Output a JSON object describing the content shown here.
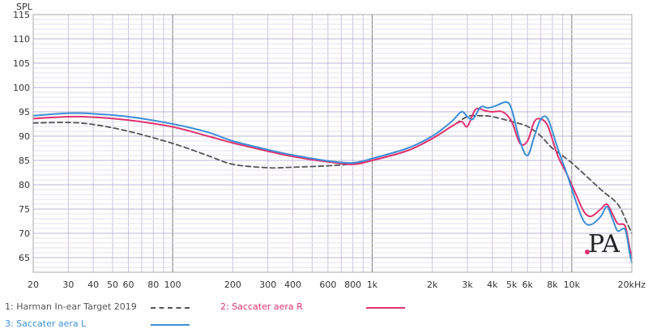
{
  "chart_data": {
    "type": "line",
    "ylabel": "SPL",
    "xscale": "log",
    "xlim": [
      20,
      20000
    ],
    "ylim": [
      62,
      115
    ],
    "yticks": [
      65,
      70,
      75,
      80,
      85,
      90,
      95,
      100,
      105,
      110,
      115
    ],
    "xticks": [
      {
        "v": 20,
        "label": "20"
      },
      {
        "v": 30,
        "label": "30"
      },
      {
        "v": 40,
        "label": "40"
      },
      {
        "v": 50,
        "label": "50"
      },
      {
        "v": 60,
        "label": "60"
      },
      {
        "v": 80,
        "label": "80"
      },
      {
        "v": 100,
        "label": "100"
      },
      {
        "v": 200,
        "label": "200"
      },
      {
        "v": 300,
        "label": "300"
      },
      {
        "v": 400,
        "label": "400"
      },
      {
        "v": 600,
        "label": "600"
      },
      {
        "v": 800,
        "label": "800"
      },
      {
        "v": 1000,
        "label": "1k"
      },
      {
        "v": 2000,
        "label": "2k"
      },
      {
        "v": 3000,
        "label": "3k"
      },
      {
        "v": 4000,
        "label": "4k"
      },
      {
        "v": 5000,
        "label": "5k"
      },
      {
        "v": 6000,
        "label": "6k"
      },
      {
        "v": 8000,
        "label": "8k"
      },
      {
        "v": 10000,
        "label": "10k"
      },
      {
        "v": 20000,
        "label": "20kHz"
      }
    ],
    "grid": true,
    "legend_position": "bottom",
    "series": [
      {
        "name": "1: Harman In-ear Target 2019",
        "color": "#555555",
        "dash": true,
        "points": [
          [
            20,
            92.7
          ],
          [
            30,
            92.8
          ],
          [
            40,
            92.4
          ],
          [
            60,
            91.0
          ],
          [
            100,
            88.5
          ],
          [
            150,
            86.0
          ],
          [
            200,
            84.2
          ],
          [
            300,
            83.5
          ],
          [
            400,
            83.6
          ],
          [
            600,
            83.9
          ],
          [
            800,
            84.3
          ],
          [
            1000,
            85.0
          ],
          [
            1500,
            87.0
          ],
          [
            2000,
            89.5
          ],
          [
            2500,
            92.0
          ],
          [
            3000,
            94.0
          ],
          [
            3500,
            94.2
          ],
          [
            4000,
            94.0
          ],
          [
            5000,
            93.0
          ],
          [
            6000,
            92.0
          ],
          [
            7000,
            90.0
          ],
          [
            8000,
            87.5
          ],
          [
            10000,
            84.5
          ],
          [
            14000,
            79.0
          ],
          [
            17000,
            76.0
          ],
          [
            19000,
            72.0
          ],
          [
            20000,
            70.0
          ]
        ]
      },
      {
        "name": "2: Saccater aera R",
        "color": "#e0336f",
        "dash": false,
        "points": [
          [
            20,
            93.6
          ],
          [
            30,
            94.0
          ],
          [
            40,
            93.9
          ],
          [
            60,
            93.3
          ],
          [
            100,
            91.9
          ],
          [
            150,
            90.0
          ],
          [
            200,
            88.6
          ],
          [
            300,
            86.9
          ],
          [
            400,
            85.8
          ],
          [
            600,
            84.7
          ],
          [
            800,
            84.2
          ],
          [
            1000,
            85.0
          ],
          [
            1500,
            87.0
          ],
          [
            2000,
            89.5
          ],
          [
            2500,
            92.0
          ],
          [
            2800,
            93.0
          ],
          [
            3000,
            92.0
          ],
          [
            3300,
            95.5
          ],
          [
            3700,
            95.2
          ],
          [
            4000,
            95.0
          ],
          [
            4500,
            95.0
          ],
          [
            5000,
            93.0
          ],
          [
            5500,
            88.5
          ],
          [
            6000,
            89.0
          ],
          [
            6500,
            93.0
          ],
          [
            7000,
            93.5
          ],
          [
            7600,
            92.0
          ],
          [
            8500,
            86.0
          ],
          [
            9500,
            82.0
          ],
          [
            10500,
            78.0
          ],
          [
            11500,
            74.5
          ],
          [
            12500,
            73.5
          ],
          [
            14000,
            75.0
          ],
          [
            15000,
            76.0
          ],
          [
            16000,
            74.0
          ],
          [
            17000,
            72.0
          ],
          [
            18500,
            71.5
          ],
          [
            19500,
            67.0
          ],
          [
            20000,
            65.0
          ]
        ]
      },
      {
        "name": "3: Saccater aera L",
        "color": "#3d8fd6",
        "dash": false,
        "points": [
          [
            20,
            94.2
          ],
          [
            30,
            94.7
          ],
          [
            40,
            94.6
          ],
          [
            60,
            94.0
          ],
          [
            100,
            92.5
          ],
          [
            150,
            90.8
          ],
          [
            200,
            89.0
          ],
          [
            300,
            87.2
          ],
          [
            400,
            86.1
          ],
          [
            600,
            84.9
          ],
          [
            800,
            84.5
          ],
          [
            1000,
            85.4
          ],
          [
            1500,
            87.5
          ],
          [
            2000,
            90.0
          ],
          [
            2500,
            93.0
          ],
          [
            2800,
            95.0
          ],
          [
            3000,
            94.0
          ],
          [
            3200,
            93.5
          ],
          [
            3500,
            96.0
          ],
          [
            3800,
            95.8
          ],
          [
            4200,
            96.3
          ],
          [
            4700,
            97.0
          ],
          [
            5000,
            95.5
          ],
          [
            5500,
            89.0
          ],
          [
            6000,
            86.0
          ],
          [
            6500,
            90.0
          ],
          [
            7000,
            93.5
          ],
          [
            7600,
            93.5
          ],
          [
            8500,
            87.5
          ],
          [
            9500,
            82.0
          ],
          [
            10500,
            76.5
          ],
          [
            11500,
            72.5
          ],
          [
            12500,
            71.8
          ],
          [
            14000,
            73.5
          ],
          [
            15000,
            75.5
          ],
          [
            16000,
            73.0
          ],
          [
            17000,
            70.5
          ],
          [
            18500,
            70.8
          ],
          [
            19500,
            66.0
          ],
          [
            20000,
            64.0
          ]
        ]
      }
    ]
  },
  "legend": {
    "items": [
      {
        "label": "1: Harman In-ear Target 2019",
        "color": "#555555",
        "dash": true
      },
      {
        "label": "2: Saccater aera R",
        "color": "#e0336f",
        "dash": false
      },
      {
        "label": "3: Saccater aera L",
        "color": "#3d8fd6",
        "dash": false
      }
    ]
  },
  "watermark": {
    "text": "PA"
  }
}
